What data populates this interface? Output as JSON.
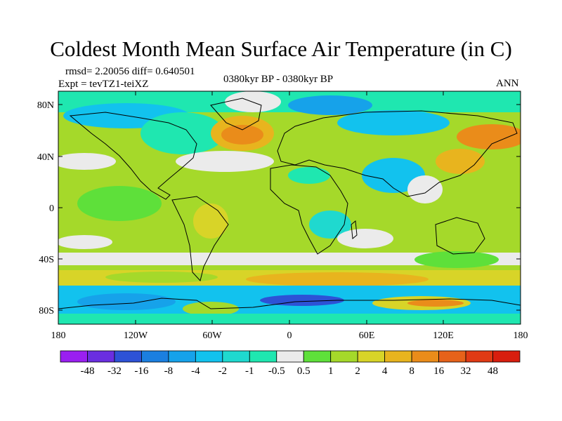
{
  "title": "Coldest Month Mean Surface Air Temperature (in C)",
  "stats": "rmsd= 2.20056 diff= 0.640501",
  "experiment": "Expt = tevTZ1-teiXZ",
  "period": "0380kyr BP - 0380kyr BP",
  "season": "ANN",
  "lat_ticks": [
    "80N",
    "40N",
    "0",
    "40S",
    "80S"
  ],
  "lon_ticks": [
    "180",
    "120W",
    "60W",
    "0",
    "60E",
    "120E",
    "180"
  ],
  "colorbar": {
    "labels": [
      "-48",
      "-32",
      "-16",
      "-8",
      "-4",
      "-2",
      "-1",
      "-0.5",
      "0.5",
      "1",
      "2",
      "4",
      "8",
      "16",
      "32",
      "48"
    ],
    "colors": [
      "#9a1ff0",
      "#6a2ee0",
      "#2d52d6",
      "#1b7fe0",
      "#16a2ea",
      "#12c2ee",
      "#1fd9cf",
      "#1fe7b0",
      "#ebebeb",
      "#5ee03a",
      "#a5d92a",
      "#d8d428",
      "#e8b41e",
      "#ea8c1a",
      "#e6621a",
      "#e03a14",
      "#d81e0e"
    ]
  }
}
